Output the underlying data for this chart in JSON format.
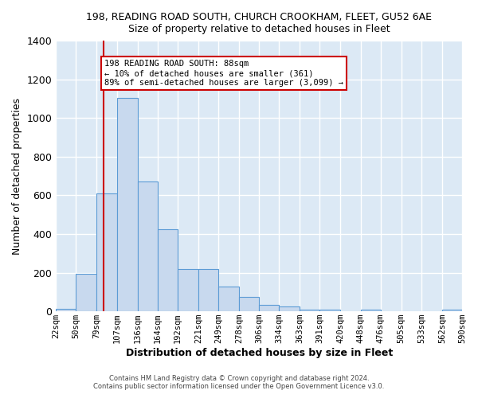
{
  "title": "198, READING ROAD SOUTH, CHURCH CROOKHAM, FLEET, GU52 6AE",
  "subtitle": "Size of property relative to detached houses in Fleet",
  "xlabel": "Distribution of detached houses by size in Fleet",
  "ylabel": "Number of detached properties",
  "bar_color": "#c8d9ee",
  "bar_edge_color": "#5b9bd5",
  "plot_bg_color": "#dce9f5",
  "figure_bg_color": "#ffffff",
  "grid_color": "#ffffff",
  "bin_edges": [
    22,
    50,
    79,
    107,
    136,
    164,
    192,
    221,
    249,
    278,
    306,
    334,
    363,
    391,
    420,
    448,
    476,
    505,
    533,
    562,
    590
  ],
  "bin_labels": [
    "22sqm",
    "50sqm",
    "79sqm",
    "107sqm",
    "136sqm",
    "164sqm",
    "192sqm",
    "221sqm",
    "249sqm",
    "278sqm",
    "306sqm",
    "334sqm",
    "363sqm",
    "391sqm",
    "420sqm",
    "448sqm",
    "476sqm",
    "505sqm",
    "533sqm",
    "562sqm",
    "590sqm"
  ],
  "counts": [
    15,
    195,
    610,
    1105,
    670,
    425,
    220,
    220,
    130,
    75,
    35,
    25,
    10,
    10,
    0,
    10,
    0,
    0,
    0,
    10
  ],
  "vline_x": 88,
  "vline_color": "#cc0000",
  "annotation_text": "198 READING ROAD SOUTH: 88sqm\n← 10% of detached houses are smaller (361)\n89% of semi-detached houses are larger (3,099) →",
  "annotation_box_edge_color": "#cc0000",
  "annotation_box_face_color": "#ffffff",
  "ylim": [
    0,
    1400
  ],
  "yticks": [
    0,
    200,
    400,
    600,
    800,
    1000,
    1200,
    1400
  ],
  "footer_line1": "Contains HM Land Registry data © Crown copyright and database right 2024.",
  "footer_line2": "Contains public sector information licensed under the Open Government Licence v3.0."
}
